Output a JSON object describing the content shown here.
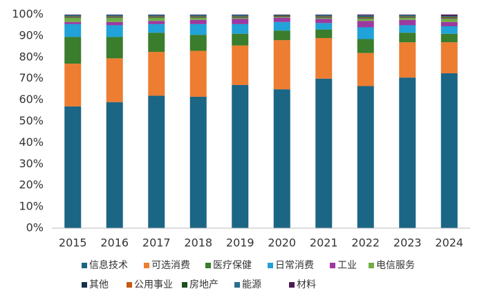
{
  "chart_data": {
    "type": "stacked_bar_100",
    "categories": [
      "2015",
      "2016",
      "2017",
      "2018",
      "2019",
      "2020",
      "2021",
      "2022",
      "2023",
      "2024"
    ],
    "series": [
      {
        "name": "信息技术",
        "color": "#1b6585",
        "values": [
          57,
          59,
          62,
          61.5,
          67,
          65,
          70,
          66.5,
          70.5,
          72.5
        ]
      },
      {
        "name": "可选消费",
        "color": "#ed7d31",
        "values": [
          20,
          20.5,
          20.5,
          21.5,
          18.5,
          23,
          19,
          15.5,
          16.5,
          14.5
        ]
      },
      {
        "name": "医疗保健",
        "color": "#3a7d2c",
        "values": [
          12.5,
          10,
          9,
          7.5,
          5.5,
          4.5,
          4,
          6.5,
          4.5,
          4
        ]
      },
      {
        "name": "日常消费",
        "color": "#21a2d8",
        "values": [
          6,
          5.5,
          4,
          5,
          4.5,
          4,
          3,
          5.5,
          3.5,
          3.5
        ]
      },
      {
        "name": "工业",
        "color": "#9b3aa0",
        "values": [
          1,
          1.5,
          1.5,
          2,
          2.5,
          2,
          2,
          3,
          2.5,
          2
        ]
      },
      {
        "name": "电信服务",
        "color": "#70ad47",
        "values": [
          2,
          2,
          1.5,
          1,
          0.5,
          0.3,
          0.5,
          1,
          1,
          1.5
        ]
      },
      {
        "name": "其他",
        "color": "#17324d",
        "values": [
          0.3,
          0.3,
          0.3,
          0.3,
          0.3,
          0.2,
          0.3,
          0.3,
          0.3,
          0.3
        ]
      },
      {
        "name": "公用事业",
        "color": "#c55a11",
        "values": [
          0.2,
          0.2,
          0.2,
          0.2,
          0.2,
          0.2,
          0.2,
          0.3,
          0.2,
          0.3
        ]
      },
      {
        "name": "房地产",
        "color": "#1e4d1e",
        "values": [
          0.3,
          0.3,
          0.3,
          0.3,
          0.3,
          0.3,
          0.3,
          0.4,
          0.3,
          0.4
        ]
      },
      {
        "name": "能源",
        "color": "#2a6e8f",
        "values": [
          0.5,
          0.5,
          0.5,
          0.5,
          0.5,
          0.3,
          0.5,
          0.6,
          0.5,
          0.3
        ]
      },
      {
        "name": "材料",
        "color": "#4b1a55",
        "values": [
          0.2,
          0.2,
          0.2,
          0.2,
          0.2,
          0.2,
          0.2,
          0.4,
          0.2,
          0.7
        ]
      }
    ],
    "ylim": [
      0,
      100
    ],
    "yticks": [
      {
        "value": 0,
        "label": "0%"
      },
      {
        "value": 10,
        "label": "10%"
      },
      {
        "value": 20,
        "label": "20%"
      },
      {
        "value": 30,
        "label": "30%"
      },
      {
        "value": 40,
        "label": "40%"
      },
      {
        "value": 50,
        "label": "50%"
      },
      {
        "value": 60,
        "label": "60%"
      },
      {
        "value": 70,
        "label": "70%"
      },
      {
        "value": 80,
        "label": "80%"
      },
      {
        "value": 90,
        "label": "90%"
      },
      {
        "value": 100,
        "label": "100%"
      }
    ],
    "grid": false,
    "legend": "bottom"
  }
}
